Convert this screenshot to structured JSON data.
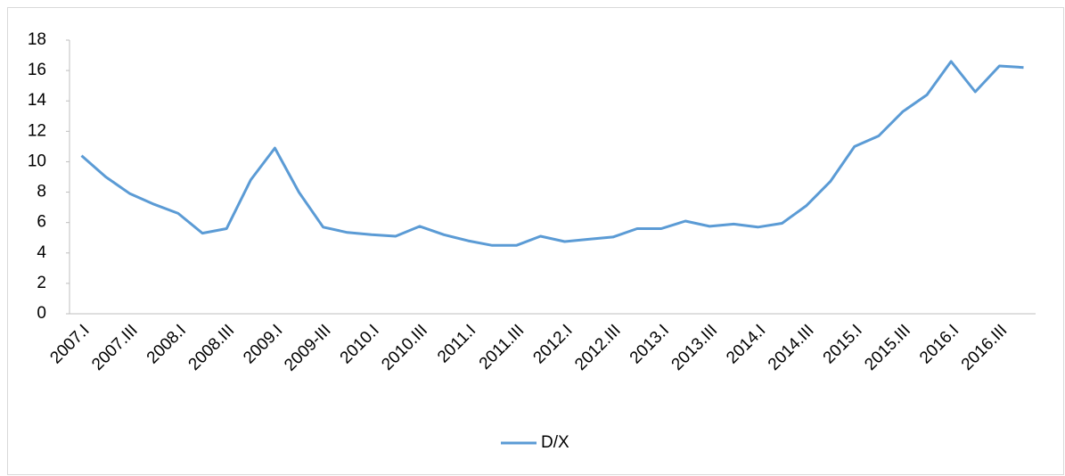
{
  "chart_data": {
    "type": "line",
    "categories": [
      "2007.I",
      null,
      "2007.III",
      null,
      "2008.I",
      null,
      "2008.III",
      null,
      "2009.I",
      null,
      "2009-III",
      null,
      "2010.I",
      null,
      "2010.III",
      null,
      "2011.I",
      null,
      "2011.III",
      null,
      "2012.I",
      null,
      "2012.III",
      null,
      "2013.I",
      null,
      "2013.III",
      null,
      "2014.I",
      null,
      "2014.III",
      null,
      "2015.I",
      null,
      "2015.III",
      null,
      "2016.I",
      null,
      "2016.III",
      null
    ],
    "series": [
      {
        "name": "D/X",
        "color": "#5b9bd5",
        "values": [
          10.4,
          9.0,
          7.9,
          7.2,
          6.6,
          5.3,
          5.6,
          8.8,
          10.9,
          8.0,
          5.7,
          5.35,
          5.2,
          5.1,
          5.75,
          5.2,
          4.8,
          4.5,
          4.5,
          5.1,
          4.75,
          4.9,
          5.05,
          5.6,
          5.6,
          6.1,
          5.75,
          5.9,
          5.7,
          5.95,
          7.1,
          8.7,
          11.0,
          11.7,
          13.3,
          14.4,
          16.6,
          14.6,
          16.3,
          16.2
        ]
      }
    ],
    "ylim": [
      0,
      18
    ],
    "yticks": [
      0,
      2,
      4,
      6,
      8,
      10,
      12,
      14,
      16,
      18
    ],
    "grid": false,
    "legend": "bottom"
  }
}
